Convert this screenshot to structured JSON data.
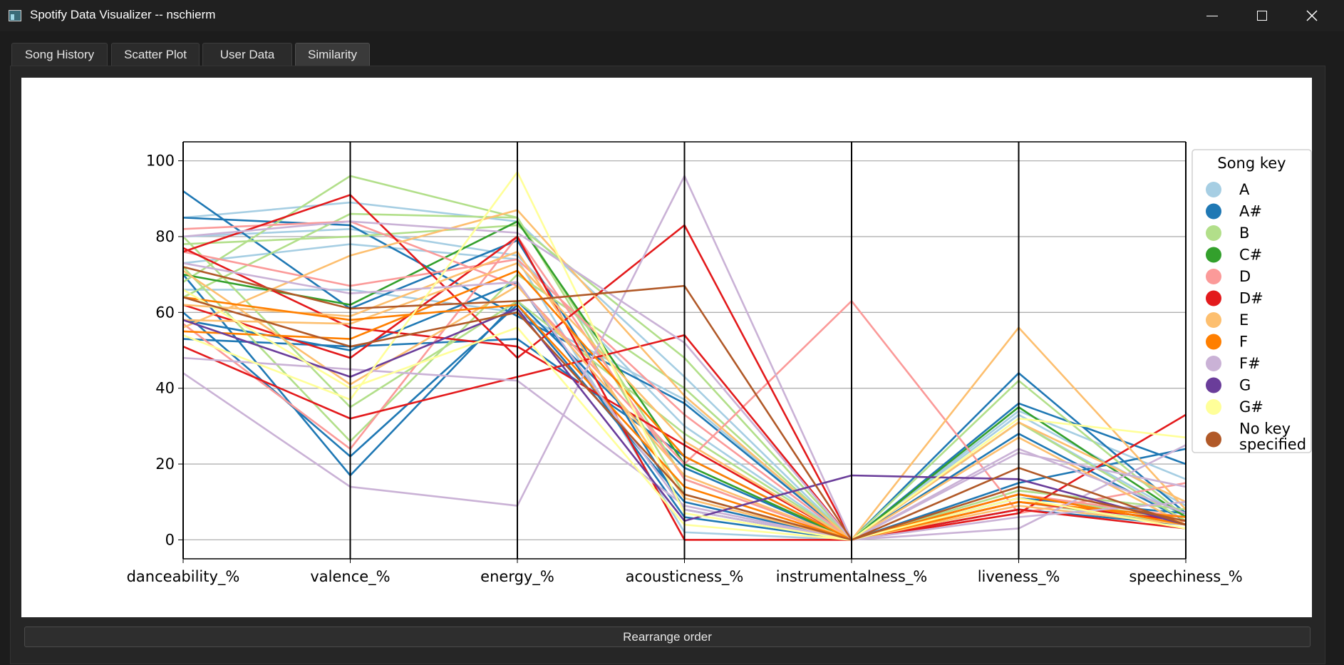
{
  "window": {
    "title": "Spotify Data Visualizer -- nschierm"
  },
  "tabs": [
    {
      "label": "Song History",
      "active": false
    },
    {
      "label": "Scatter Plot",
      "active": false
    },
    {
      "label": "User Data",
      "active": false
    },
    {
      "label": "Similarity",
      "active": true
    }
  ],
  "footer": {
    "rearrange_label": "Rearrange order"
  },
  "colors": {
    "A": "#a6cee3",
    "A#": "#1f78b4",
    "B": "#b2df8a",
    "C#": "#33a02c",
    "D": "#fb9a99",
    "D#": "#e31a1c",
    "E": "#fdbf6f",
    "F": "#ff7f00",
    "F#": "#cab2d6",
    "G": "#6a3d9a",
    "G#": "#ffff99",
    "No key specified": "#b15928"
  },
  "chart_data": {
    "type": "parallel_coordinates",
    "axes": [
      "danceability_%",
      "valence_%",
      "energy_%",
      "acousticness_%",
      "instrumentalness_%",
      "liveness_%",
      "speechiness_%"
    ],
    "ylim": [
      -5,
      105
    ],
    "yticks": [
      "0",
      "20",
      "40",
      "60",
      "80",
      "100"
    ],
    "grid": true,
    "legend": {
      "title": "Song key",
      "placement": "right",
      "entries": [
        "A",
        "A#",
        "B",
        "C#",
        "D",
        "D#",
        "E",
        "F",
        "F#",
        "G",
        "G#",
        "No key\nspecified"
      ]
    },
    "series": [
      {
        "key": "A",
        "values": [
          85,
          89,
          84,
          43,
          0,
          34,
          16
        ]
      },
      {
        "key": "A",
        "values": [
          80,
          82,
          75,
          30,
          0,
          33,
          9
        ]
      },
      {
        "key": "A",
        "values": [
          73,
          78,
          74,
          2,
          0,
          31,
          6
        ]
      },
      {
        "key": "A",
        "values": [
          66,
          66,
          60,
          37,
          0,
          13,
          8
        ]
      },
      {
        "key": "A#",
        "values": [
          92,
          61,
          79,
          8,
          0,
          44,
          7
        ]
      },
      {
        "key": "A#",
        "values": [
          85,
          83,
          59,
          36,
          0,
          36,
          20
        ]
      },
      {
        "key": "A#",
        "values": [
          70,
          17,
          63,
          19,
          0,
          28,
          5
        ]
      },
      {
        "key": "A#",
        "values": [
          60,
          22,
          62,
          10,
          0,
          15,
          24
        ]
      },
      {
        "key": "A#",
        "values": [
          53,
          51,
          53,
          22,
          0,
          11,
          7
        ]
      },
      {
        "key": "A#",
        "values": [
          58,
          50,
          68,
          6,
          0,
          8,
          4
        ]
      },
      {
        "key": "B",
        "values": [
          68,
          96,
          85,
          16,
          0,
          42,
          6
        ]
      },
      {
        "key": "B",
        "values": [
          78,
          80,
          83,
          48,
          0,
          12,
          5
        ]
      },
      {
        "key": "B",
        "values": [
          72,
          26,
          70,
          40,
          0,
          10,
          4
        ]
      },
      {
        "key": "B",
        "values": [
          80,
          35,
          63,
          28,
          0,
          31,
          5
        ]
      },
      {
        "key": "B",
        "values": [
          64,
          86,
          85,
          12,
          0,
          13,
          8
        ]
      },
      {
        "key": "C#",
        "values": [
          70,
          62,
          84,
          20,
          0,
          35,
          6
        ]
      },
      {
        "key": "D",
        "values": [
          82,
          84,
          67,
          20,
          63,
          7,
          15
        ]
      },
      {
        "key": "D",
        "values": [
          57,
          24,
          80,
          16,
          0,
          12,
          6
        ]
      },
      {
        "key": "D",
        "values": [
          76,
          67,
          74,
          33,
          0,
          10,
          5
        ]
      },
      {
        "key": "D#",
        "values": [
          76,
          91,
          48,
          83,
          0,
          7,
          33
        ]
      },
      {
        "key": "D#",
        "values": [
          51,
          32,
          43,
          54,
          0,
          12,
          4
        ]
      },
      {
        "key": "D#",
        "values": [
          62,
          48,
          80,
          0,
          0,
          10,
          5
        ]
      },
      {
        "key": "D#",
        "values": [
          77,
          56,
          51,
          25,
          0,
          8,
          3
        ]
      },
      {
        "key": "E",
        "values": [
          56,
          75,
          87,
          38,
          0,
          56,
          8
        ]
      },
      {
        "key": "E",
        "values": [
          58,
          57,
          73,
          26,
          0,
          31,
          10
        ]
      },
      {
        "key": "E",
        "values": [
          71,
          41,
          67,
          17,
          0,
          9,
          4
        ]
      },
      {
        "key": "E",
        "values": [
          62,
          59,
          76,
          11,
          0,
          27,
          4
        ]
      },
      {
        "key": "F",
        "values": [
          55,
          53,
          71,
          22,
          0,
          10,
          6
        ]
      },
      {
        "key": "F",
        "values": [
          64,
          58,
          62,
          14,
          0,
          12,
          4
        ]
      },
      {
        "key": "F#",
        "values": [
          44,
          14,
          9,
          96,
          0,
          3,
          25
        ]
      },
      {
        "key": "F#",
        "values": [
          48,
          45,
          42,
          9,
          0,
          23,
          14
        ]
      },
      {
        "key": "F#",
        "values": [
          80,
          84,
          81,
          52,
          0,
          6,
          10
        ]
      },
      {
        "key": "F#",
        "values": [
          73,
          65,
          68,
          8,
          0,
          24,
          7
        ]
      },
      {
        "key": "G",
        "values": [
          58,
          43,
          61,
          5,
          17,
          16,
          4
        ]
      },
      {
        "key": "G#",
        "values": [
          54,
          37,
          97,
          7,
          0,
          32,
          27
        ]
      },
      {
        "key": "G#",
        "values": [
          66,
          40,
          56,
          4,
          0,
          11,
          3
        ]
      },
      {
        "key": "No key specified",
        "values": [
          72,
          61,
          63,
          67,
          0,
          19,
          4
        ]
      },
      {
        "key": "No key specified",
        "values": [
          64,
          51,
          60,
          12,
          0,
          14,
          5
        ]
      }
    ]
  }
}
